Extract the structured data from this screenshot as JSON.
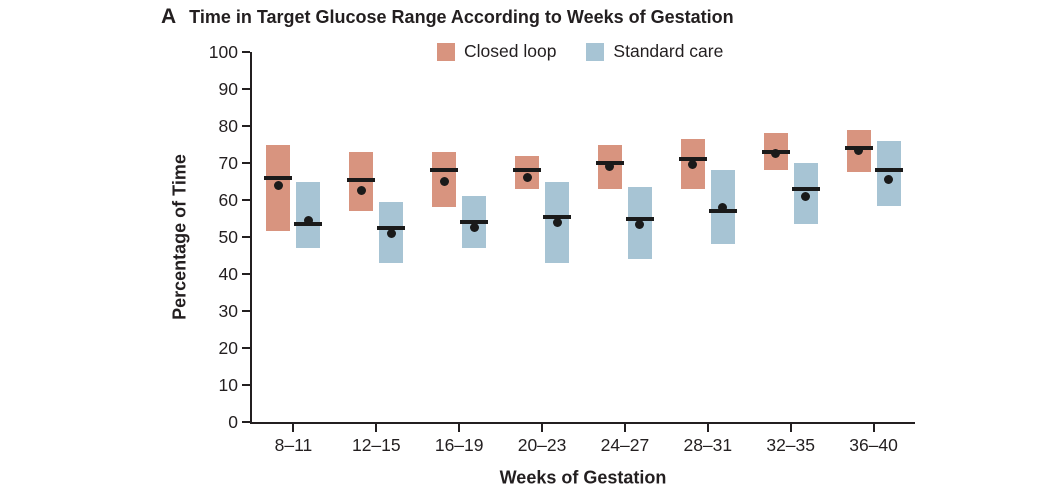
{
  "panel_label": "A",
  "title": "Time in Target Glucose Range According to Weeks of Gestation",
  "ylabel": "Percentage of Time",
  "xlabel": "Weeks of Gestation",
  "legend": [
    {
      "label": "Closed loop",
      "color": "#D8947F"
    },
    {
      "label": "Standard care",
      "color": "#A7C4D4"
    }
  ],
  "colors": {
    "closed_loop": "#D8947F",
    "standard_care": "#A7C4D4",
    "median_and_mean": "#1A1A1A",
    "axis_and_text": "#231F20"
  },
  "chart_data": {
    "type": "box",
    "subtype": "floating IQR bars with median line and mean dot",
    "title": "Time in Target Glucose Range According to Weeks of Gestation",
    "xlabel": "Weeks of Gestation",
    "ylabel": "Percentage of Time",
    "ylim": [
      0,
      100
    ],
    "yticks": [
      0,
      10,
      20,
      30,
      40,
      50,
      60,
      70,
      80,
      90,
      100
    ],
    "grid": false,
    "legend_position": "top",
    "categories": [
      "8–11",
      "12–15",
      "16–19",
      "20–23",
      "24–27",
      "28–31",
      "32–35",
      "36–40"
    ],
    "series": [
      {
        "name": "Closed loop",
        "color": "#D8947F",
        "q1": [
          51.5,
          57,
          58,
          63,
          63,
          63,
          68,
          67.5
        ],
        "q3": [
          75,
          73,
          73,
          72,
          75,
          76.5,
          78,
          79
        ],
        "median": [
          66,
          65.5,
          68,
          68,
          70,
          71,
          73,
          74
        ],
        "mean": [
          64,
          62.5,
          65,
          66,
          69,
          69.5,
          72.5,
          73.5
        ]
      },
      {
        "name": "Standard care",
        "color": "#A7C4D4",
        "q1": [
          47,
          43,
          47,
          43,
          44,
          48,
          53.5,
          58.5
        ],
        "q3": [
          65,
          59.5,
          61,
          65,
          63.5,
          68,
          70,
          76
        ],
        "median": [
          53.5,
          52.5,
          54,
          55.5,
          55,
          57,
          63,
          68
        ],
        "mean": [
          54.5,
          51,
          52.5,
          54,
          53.5,
          58,
          61,
          65.5
        ]
      }
    ]
  }
}
